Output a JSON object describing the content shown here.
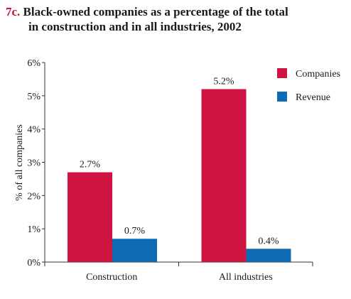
{
  "figure_label": "7c.",
  "title_line1": "Black-owned companies as a percentage of the total",
  "title_line2": "in construction and in all industries, 2002",
  "chart_data": {
    "type": "bar",
    "title": "Black-owned companies as a percentage of the total in construction and in all industries, 2002",
    "xlabel": "",
    "ylabel": "% of all companies",
    "ylim": [
      0,
      6
    ],
    "yticks": [
      "0%",
      "1%",
      "2%",
      "3%",
      "4%",
      "5%",
      "6%"
    ],
    "categories": [
      "Construction",
      "All industries"
    ],
    "series": [
      {
        "name": "Companies",
        "color": "#d01441",
        "values": [
          2.7,
          5.2
        ],
        "labels": [
          "2.7%",
          "5.2%"
        ]
      },
      {
        "name": "Revenue",
        "color": "#0c6bb3",
        "values": [
          0.7,
          0.4
        ],
        "labels": [
          "0.7%",
          "0.4%"
        ]
      }
    ],
    "legend_position": "top-right",
    "grid": false
  }
}
